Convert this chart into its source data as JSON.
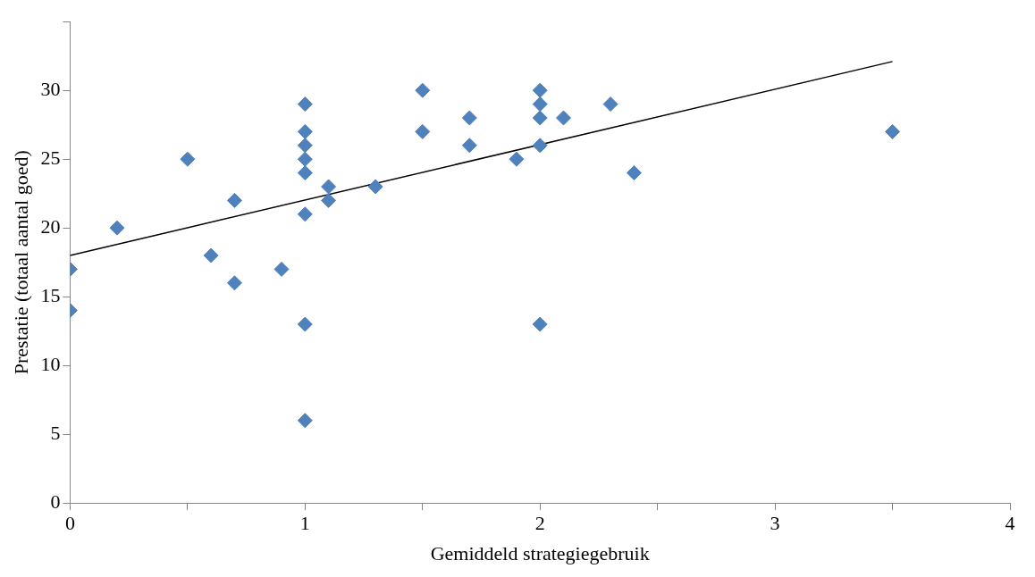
{
  "chart_data": {
    "type": "scatter",
    "xlabel": "Gemiddeld strategiegebruik",
    "ylabel": "Prestatie (totaal aantal goed)",
    "xlim": [
      0,
      4
    ],
    "xticks": [
      0,
      {
        "value": 0.5,
        "label": null
      },
      1,
      {
        "value": 1.5,
        "label": null
      },
      2,
      {
        "value": 2.5,
        "label": null
      },
      3,
      {
        "value": 3.5,
        "label": null
      },
      4
    ],
    "ylim": [
      0,
      35
    ],
    "yticks": [
      0,
      5,
      10,
      15,
      20,
      25,
      30,
      {
        "value": 35,
        "label": null
      }
    ],
    "grid": false,
    "legend": false,
    "marker": "diamond",
    "series": [
      {
        "type": "scatter",
        "color": "#4f81bd",
        "x": [
          0,
          0,
          0.2,
          0.5,
          0.6,
          0.7,
          0.7,
          0.9,
          1,
          1,
          1,
          1,
          1,
          1,
          1,
          1,
          1.1,
          1.1,
          1.3,
          1.5,
          1.5,
          1.7,
          1.7,
          1.9,
          2,
          2,
          2,
          2,
          2,
          2.1,
          2.3,
          2.4,
          3.5
        ],
        "values": [
          17,
          14,
          20,
          25,
          18,
          22,
          16,
          17,
          29,
          27,
          26,
          25,
          24,
          21,
          13,
          6,
          23,
          22,
          23,
          30,
          27,
          28,
          26,
          25,
          30,
          29,
          28,
          26,
          13,
          28,
          29,
          24,
          27
        ]
      },
      {
        "type": "line",
        "color": "#000000",
        "marker": "none",
        "x": [
          0,
          3.5
        ],
        "values": [
          18,
          32.1
        ]
      }
    ]
  }
}
